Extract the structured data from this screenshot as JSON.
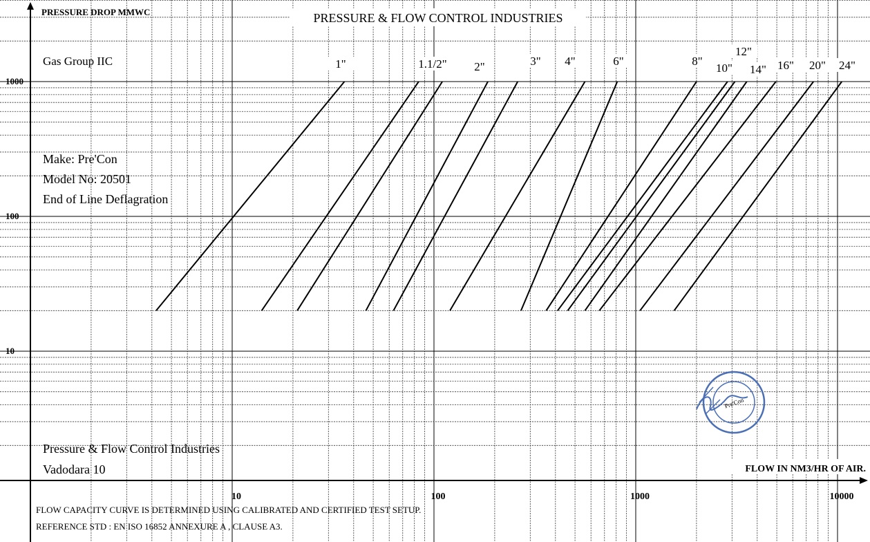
{
  "chart_data": {
    "type": "line",
    "title": "PRESSURE & FLOW CONTROL INDUSTRIES",
    "ylabel": "PRESSURE DROP MMWC",
    "xlabel": "FLOW IN NM3/HR OF AIR.",
    "xscale": "log",
    "yscale": "log",
    "grid": true,
    "xlim": [
      1,
      20000
    ],
    "ylim": [
      1,
      4000
    ],
    "x_ticks": [
      "10",
      "100",
      "1000",
      "10000"
    ],
    "y_ticks": [
      "1000",
      "100",
      "10"
    ],
    "series": [
      {
        "name": "",
        "x": [
          4.2,
          36
        ],
        "y": [
          20,
          1000
        ]
      },
      {
        "name": "1\"",
        "x": [
          14,
          84
        ],
        "y": [
          20,
          1000
        ]
      },
      {
        "name": "1.1/2\"",
        "x": [
          21,
          110
        ],
        "y": [
          20,
          1000
        ]
      },
      {
        "name": "2\"",
        "x": [
          46,
          185
        ],
        "y": [
          20,
          1000
        ]
      },
      {
        "name": "",
        "x": [
          63,
          260
        ],
        "y": [
          20,
          1000
        ]
      },
      {
        "name": "3\"",
        "x": [
          120,
          560
        ],
        "y": [
          20,
          1000
        ]
      },
      {
        "name": "4\"",
        "x": [
          270,
          810
        ],
        "y": [
          20,
          1000
        ]
      },
      {
        "name": "",
        "x": [
          360,
          2000
        ],
        "y": [
          20,
          1000
        ]
      },
      {
        "name": "6\"",
        "x": [
          410,
          2850
        ],
        "y": [
          20,
          1000
        ]
      },
      {
        "name": "",
        "x": [
          460,
          3100
        ],
        "y": [
          20,
          1000
        ]
      },
      {
        "name": "8\"",
        "x": [
          560,
          3550
        ],
        "y": [
          20,
          1000
        ]
      },
      {
        "name": "10\"",
        "x": [
          660,
          4950
        ],
        "y": [
          20,
          1000
        ]
      },
      {
        "name": "12\"",
        "x": [
          1050,
          7600
        ],
        "y": [
          20,
          1000
        ]
      },
      {
        "name": "14\"",
        "x": [
          1550,
          10500
        ],
        "y": [
          20,
          1000
        ]
      }
    ],
    "line_labels": [
      "1\"",
      "1.1/2\"",
      "2\"",
      "3\"",
      "4\"",
      "6\"",
      "8\"",
      "10\"",
      "12\"",
      "14\"",
      "16\"",
      "20\"",
      "24\""
    ]
  },
  "annotations": {
    "gas_group": "Gas Group IIC",
    "make": "Make: Pre'Con",
    "model": "Model No: 20501",
    "type": "End of Line Deflagration",
    "company": "Pressure & Flow Control Industries",
    "city": "Vadodara 10",
    "note1": "FLOW CAPACITY CURVE IS DETERMINED USING CALIBRATED AND CERTIFIED TEST SETUP.",
    "note2": "REFERENCE STD : EN ISO 16852 ANNEXURE A , CLAUSE A3."
  },
  "stamp": {
    "color": "#4a6fb5",
    "text": "Pressure & Flow Control Industries"
  }
}
